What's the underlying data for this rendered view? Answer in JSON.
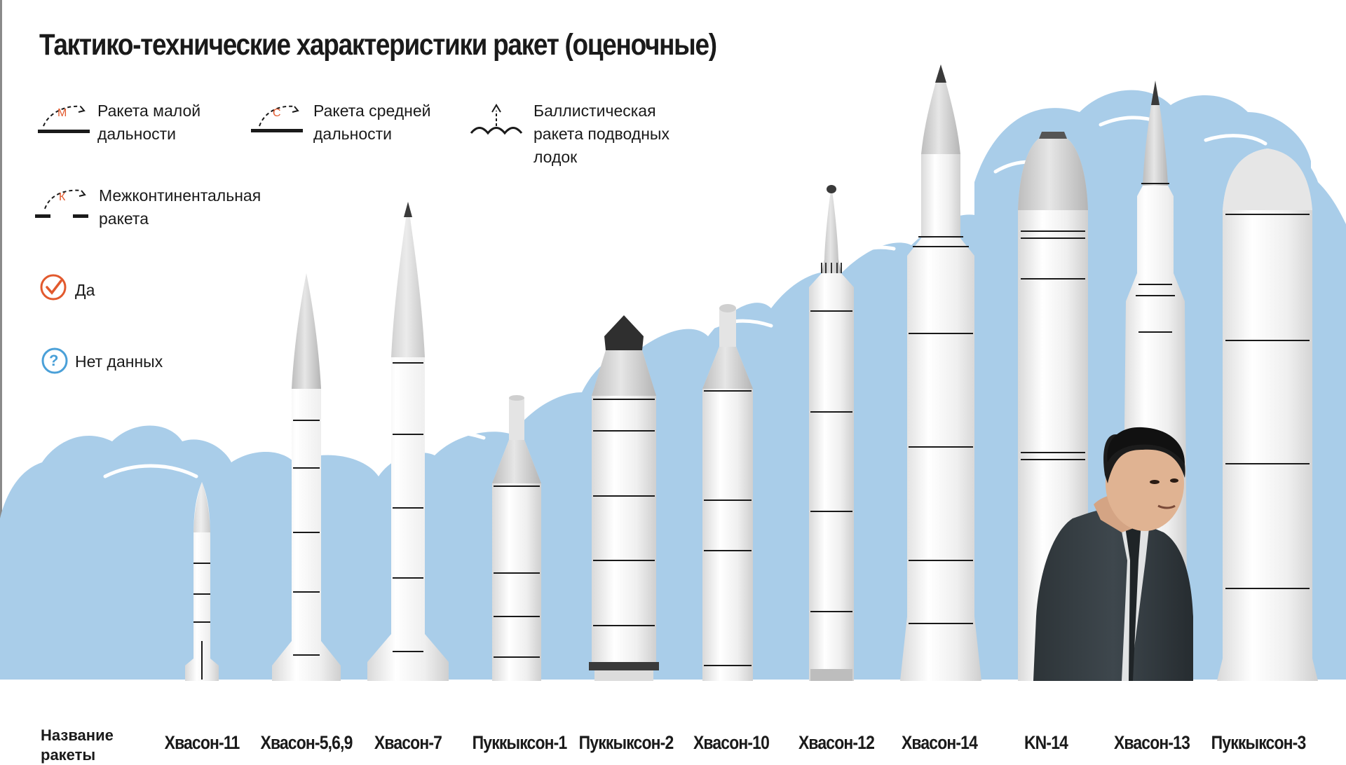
{
  "title": "Тактико-технические характеристики ракет (оценочные)",
  "legend": {
    "short_range": {
      "letter": "М",
      "line1": "Ракета малой",
      "line2": "дальности"
    },
    "medium_range": {
      "letter": "С",
      "line1": "Ракета средней",
      "line2": "дальности"
    },
    "slbm": {
      "line1": "Баллистическая",
      "line2": "ракета подводных",
      "line3": "лодок"
    },
    "icbm": {
      "letter": "К",
      "line1": "Межконтинентальная",
      "line2": "ракета"
    },
    "yes": "Да",
    "no_data_mark": "?",
    "no_data": "Нет данных"
  },
  "table_header": {
    "line1": "Название",
    "line2": "ракеты"
  },
  "rockets": [
    {
      "name": "Хвасон-11"
    },
    {
      "name": "Хвасон-5,6,9"
    },
    {
      "name": "Хвасон-7"
    },
    {
      "name": "Пуккыксон-1"
    },
    {
      "name": "Пуккыксон-2"
    },
    {
      "name": "Хвасон-10"
    },
    {
      "name": "Хвасон-12"
    },
    {
      "name": "Хвасон-14"
    },
    {
      "name": "KN-14"
    },
    {
      "name": "Хвасон-13"
    },
    {
      "name": "Пуккыксон-3"
    }
  ],
  "colors": {
    "sky": "#a9cde9",
    "sky_light": "#c4def2",
    "rocket_body": "#eeeeee",
    "rocket_shade": "#cfcfcf",
    "accent": "#e2592d",
    "question": "#4aa0d8",
    "ink": "#1a1a1a"
  }
}
